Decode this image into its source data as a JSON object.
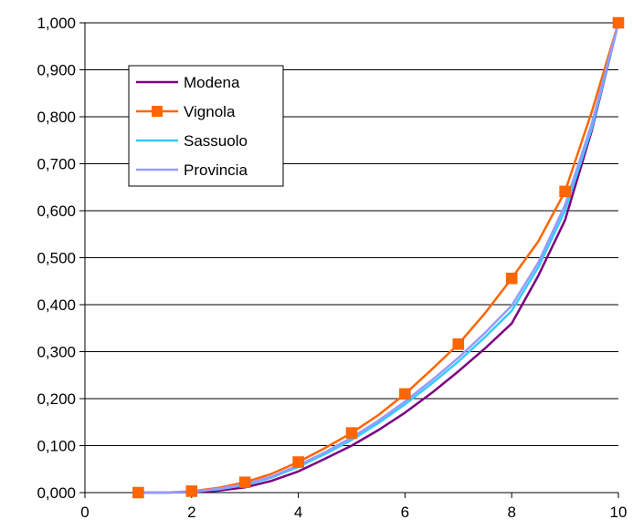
{
  "chart_data": {
    "type": "line",
    "x": [
      1,
      1.5,
      2,
      2.5,
      3,
      3.5,
      4,
      4.5,
      5,
      5.5,
      6,
      6.5,
      7,
      7.5,
      8,
      8.5,
      9,
      9.5,
      10
    ],
    "series": [
      {
        "name": "Modena",
        "color": "#7b0080",
        "marker": "none",
        "values": [
          0.0,
          0.0,
          0.001,
          0.004,
          0.011,
          0.025,
          0.045,
          0.072,
          0.1,
          0.133,
          0.17,
          0.212,
          0.258,
          0.307,
          0.36,
          0.462,
          0.58,
          0.77,
          1.0
        ]
      },
      {
        "name": "Vignola",
        "color": "#ff6600",
        "marker": "square",
        "values": [
          0.0,
          0.0,
          0.003,
          0.01,
          0.022,
          0.04,
          0.065,
          0.095,
          0.127,
          0.165,
          0.21,
          0.262,
          0.316,
          0.382,
          0.456,
          0.535,
          0.641,
          0.81,
          1.0
        ]
      },
      {
        "name": "Sassuolo",
        "color": "#33ccff",
        "marker": "none",
        "values": [
          0.0,
          0.0,
          0.002,
          0.007,
          0.016,
          0.032,
          0.055,
          0.082,
          0.112,
          0.148,
          0.188,
          0.232,
          0.279,
          0.331,
          0.387,
          0.48,
          0.6,
          0.775,
          1.0
        ]
      },
      {
        "name": "Provincia",
        "color": "#9999ff",
        "marker": "none",
        "values": [
          0.0,
          0.0,
          0.002,
          0.008,
          0.018,
          0.034,
          0.058,
          0.086,
          0.117,
          0.153,
          0.194,
          0.239,
          0.287,
          0.34,
          0.398,
          0.49,
          0.612,
          0.785,
          1.0
        ]
      }
    ],
    "xlim": [
      0,
      10
    ],
    "ylim": [
      0,
      1
    ],
    "xticks": [
      "0",
      "2",
      "4",
      "6",
      "8",
      "10"
    ],
    "xtick_values": [
      0,
      2,
      4,
      6,
      8,
      10
    ],
    "yticks": [
      "0,000",
      "0,100",
      "0,200",
      "0,300",
      "0,400",
      "0,500",
      "0,600",
      "0,700",
      "0,800",
      "0,900",
      "1,000"
    ],
    "ytick_values": [
      0,
      0.1,
      0.2,
      0.3,
      0.4,
      0.5,
      0.6,
      0.7,
      0.8,
      0.9,
      1.0
    ],
    "marker_x": [
      1,
      2,
      3,
      4,
      5,
      6,
      7,
      8,
      9,
      10
    ],
    "grid": {
      "horizontal": true,
      "vertical": false
    },
    "legend": {
      "position": "top-left-inside"
    }
  }
}
